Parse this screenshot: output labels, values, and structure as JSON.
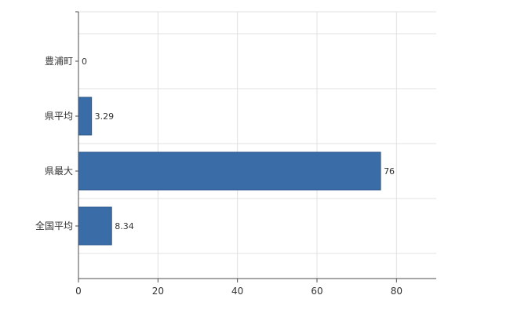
{
  "chart_data": {
    "type": "bar",
    "orientation": "horizontal",
    "title": "",
    "categories": [
      "豊浦町",
      "県平均",
      "県最大",
      "全国平均"
    ],
    "values": [
      0,
      3.29,
      76,
      8.34
    ],
    "value_labels": [
      "0",
      "3.29",
      "76",
      "8.34"
    ],
    "xlabel": "",
    "ylabel": "",
    "xlim": [
      0,
      90
    ],
    "xticks": [
      0,
      20,
      40,
      60,
      80
    ],
    "grid": true,
    "legend": false,
    "colors": {
      "bar": "#3a6ca8",
      "bar_border": "#2f5a8f",
      "axis": "#4d4d4d",
      "gridline": "#e0e0e0",
      "label": "#333333",
      "background": "#ffffff"
    }
  }
}
